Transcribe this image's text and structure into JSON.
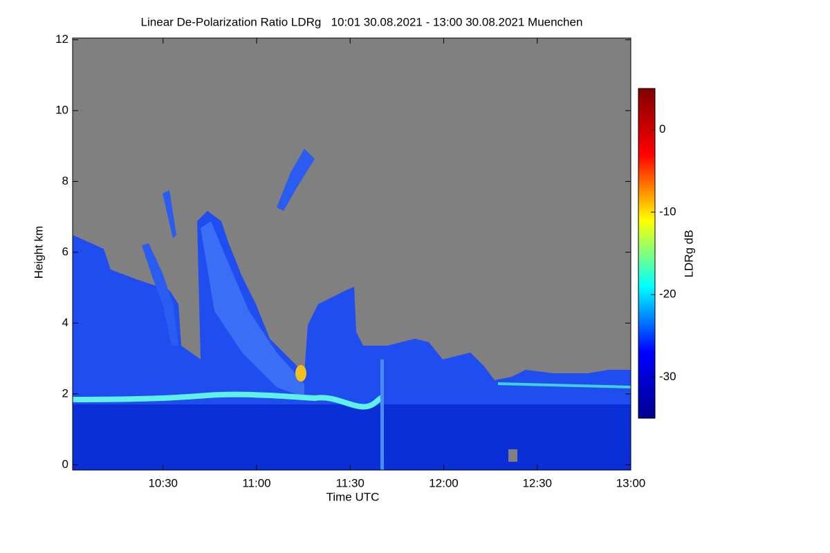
{
  "chart_data": {
    "type": "heatmap",
    "title": "Linear De-Polarization Ratio LDRg   10:01 30.08.2021 - 13:00 30.08.2021 Muenchen",
    "x_label": "Time UTC",
    "y_label": "Height km",
    "xlim": [
      601,
      780
    ],
    "xticks": [
      {
        "value": 630,
        "label": "10:30"
      },
      {
        "value": 660,
        "label": "11:00"
      },
      {
        "value": 690,
        "label": "11:30"
      },
      {
        "value": 720,
        "label": "12:00"
      },
      {
        "value": 750,
        "label": "12:30"
      },
      {
        "value": 780,
        "label": "13:00"
      }
    ],
    "ylim": [
      -0.15,
      12.05
    ],
    "yticks": [
      0,
      2,
      4,
      6,
      8,
      10,
      12
    ],
    "colorbar": {
      "label": "LDRg dB",
      "clim": [
        -35,
        5
      ],
      "ticks": [
        0,
        -10,
        -20,
        -30
      ],
      "colormap": "jet"
    }
  }
}
